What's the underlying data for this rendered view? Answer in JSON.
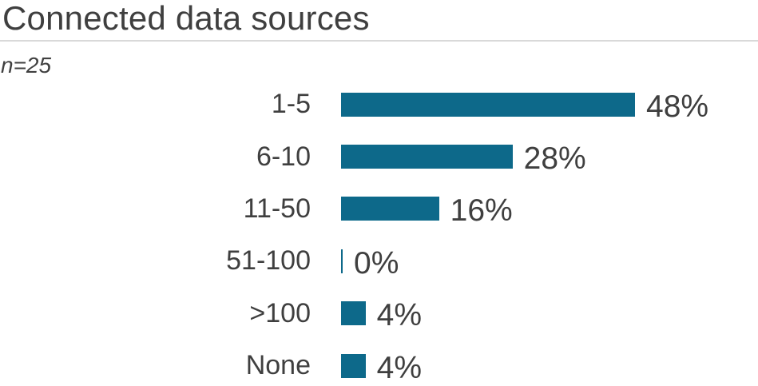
{
  "header": {
    "title": "Connected data sources",
    "subtitle": "n=25"
  },
  "chart_data": {
    "type": "bar",
    "orientation": "horizontal",
    "title": "Connected data sources",
    "subtitle": "n=25",
    "sample_size": 25,
    "categories": [
      "1-5",
      "6-10",
      "11-50",
      "51-100",
      ">100",
      "None"
    ],
    "values": [
      48,
      28,
      16,
      0,
      4,
      4
    ],
    "value_labels": [
      "48%",
      "28%",
      "16%",
      "0%",
      "4%",
      "4%"
    ],
    "xlabel": "",
    "ylabel": "",
    "xlim": [
      0,
      48
    ],
    "grid": false,
    "legend": false,
    "axis_lines": false,
    "bar_color": "#0d698a"
  },
  "colors": {
    "bar": "#0d698a",
    "text": "#3f3f3f",
    "divider": "#d9d9d9",
    "background": "#ffffff"
  }
}
